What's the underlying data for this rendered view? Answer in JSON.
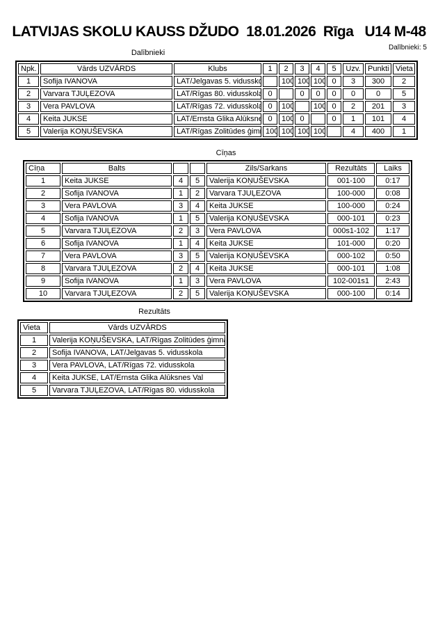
{
  "header": {
    "title": "LATVIJAS SKOLU KAUSS DŽUDO  18.01.2026  Rīga   U14 M-48",
    "participants_count": "Dalībnieki: 5"
  },
  "participants": {
    "heading": "Dalībnieki",
    "columns": [
      "Npk.",
      "Vārds UZVĀRDS",
      "Klubs",
      "1",
      "2",
      "3",
      "4",
      "5",
      "Uzv.",
      "Punkti",
      "Vieta"
    ],
    "rows": [
      [
        "1",
        "Sofija IVANOVA",
        "LAT/Jelgavas 5. vidusskola",
        "",
        "100",
        "100",
        "100",
        "0",
        "3",
        "300",
        "2"
      ],
      [
        "2",
        "Varvara TJUĻEZOVA",
        "LAT/Rīgas 80. vidusskola",
        "0",
        "",
        "0",
        "0",
        "0",
        "0",
        "0",
        "5"
      ],
      [
        "3",
        "Vera PAVLOVA",
        "LAT/Rīgas 72. vidusskola",
        "0",
        "100",
        "",
        "100",
        "0",
        "2",
        "201",
        "3"
      ],
      [
        "4",
        "Keita JUKSE",
        "LAT/Ernsta Glika Alūksnes Val",
        "0",
        "100",
        "0",
        "",
        "0",
        "1",
        "101",
        "4"
      ],
      [
        "5",
        "Valerija KOŅUŠEVSKA",
        "LAT/Rīgas Zolitūdes ģimnāzija",
        "100",
        "100",
        "100",
        "100",
        "",
        "4",
        "400",
        "1"
      ]
    ]
  },
  "fights": {
    "heading": "Cīņas",
    "columns": [
      "Cīņa",
      "Balts",
      "",
      "",
      "Zils/Sarkans",
      "Rezultāts",
      "Laiks"
    ],
    "rows": [
      [
        "1",
        "Keita JUKSE",
        "4",
        "5",
        "Valerija KOŅUŠEVSKA",
        "001-100",
        "0:17"
      ],
      [
        "2",
        "Sofija IVANOVA",
        "1",
        "2",
        "Varvara TJUĻEZOVA",
        "100-000",
        "0:08"
      ],
      [
        "3",
        "Vera PAVLOVA",
        "3",
        "4",
        "Keita JUKSE",
        "100-000",
        "0:24"
      ],
      [
        "4",
        "Sofija IVANOVA",
        "1",
        "5",
        "Valerija KOŅUŠEVSKA",
        "000-101",
        "0:23"
      ],
      [
        "5",
        "Varvara TJUĻEZOVA",
        "2",
        "3",
        "Vera PAVLOVA",
        "000s1-102",
        "1:17"
      ],
      [
        "6",
        "Sofija IVANOVA",
        "1",
        "4",
        "Keita JUKSE",
        "101-000",
        "0:20"
      ],
      [
        "7",
        "Vera PAVLOVA",
        "3",
        "5",
        "Valerija KOŅUŠEVSKA",
        "000-102",
        "0:50"
      ],
      [
        "8",
        "Varvara TJUĻEZOVA",
        "2",
        "4",
        "Keita JUKSE",
        "000-101",
        "1:08"
      ],
      [
        "9",
        "Sofija IVANOVA",
        "1",
        "3",
        "Vera PAVLOVA",
        "102-001s1",
        "2:43"
      ],
      [
        "10",
        "Varvara TJUĻEZOVA",
        "2",
        "5",
        "Valerija KOŅUŠEVSKA",
        "000-100",
        "0:14"
      ]
    ]
  },
  "results": {
    "heading": "Rezultāts",
    "columns": [
      "Vieta",
      "Vārds UZVĀRDS"
    ],
    "rows": [
      [
        "1",
        "Valerija KOŅUŠEVSKA, LAT/Rīgas Zolitūdes ģimnāzija"
      ],
      [
        "2",
        "Sofija IVANOVA, LAT/Jelgavas 5. vidusskola"
      ],
      [
        "3",
        "Vera PAVLOVA, LAT/Rīgas 72. vidusskola"
      ],
      [
        "4",
        "Keita JUKSE, LAT/Ernsta Glika Alūksnes Val"
      ],
      [
        "5",
        "Varvara TJUĻEZOVA, LAT/Rīgas 80. vidusskola"
      ]
    ]
  },
  "colors": {
    "text": "#000000",
    "background": "#ffffff",
    "border": "#000000"
  }
}
